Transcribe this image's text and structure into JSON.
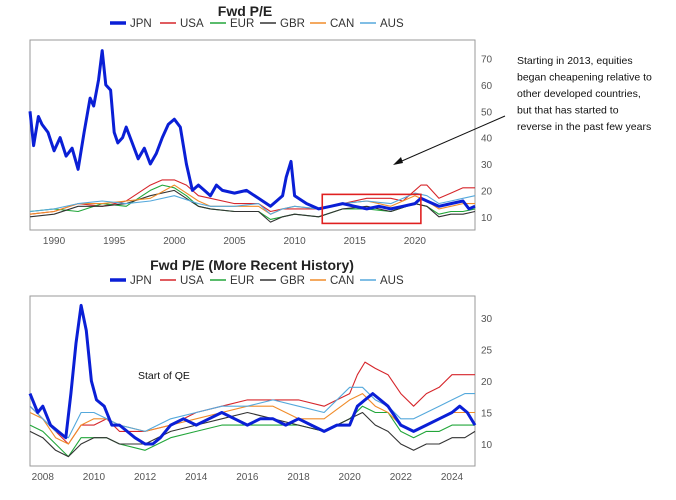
{
  "series_colors": {
    "JPN": "#0a1fd6",
    "USA": "#d6262b",
    "EUR": "#22a63a",
    "GBR": "#333333",
    "CAN": "#f08c2a",
    "AUS": "#55a9dc"
  },
  "chart_data": [
    {
      "type": "line",
      "title": "Fwd P/E",
      "legend": [
        "JPN",
        "USA",
        "EUR",
        "GBR",
        "CAN",
        "AUS"
      ],
      "legend_position": "top",
      "xlim": [
        1988,
        2025
      ],
      "ylim": [
        5,
        77
      ],
      "x_ticks": [
        "1990",
        "1995",
        "2000",
        "2005",
        "2010",
        "2015",
        "2020"
      ],
      "y_ticks": [
        "10",
        "20",
        "30",
        "40",
        "50",
        "60",
        "70"
      ],
      "y_axis_side": "right",
      "grid": false,
      "series": [
        {
          "name": "JPN",
          "x": [
            1988,
            1988.3,
            1988.7,
            1989,
            1989.5,
            1990,
            1990.5,
            1991,
            1991.5,
            1992,
            1992.5,
            1993,
            1993.3,
            1993.7,
            1994,
            1994.3,
            1994.7,
            1995,
            1995.3,
            1995.7,
            1996,
            1996.5,
            1997,
            1997.5,
            1998,
            1998.5,
            1999,
            1999.5,
            2000,
            2000.5,
            2001,
            2001.5,
            2002,
            2002.5,
            2003,
            2003.5,
            2004,
            2005,
            2006,
            2007,
            2008,
            2008.5,
            2009,
            2009.3,
            2009.7,
            2010,
            2011,
            2012,
            2013,
            2014,
            2015,
            2016,
            2017,
            2018,
            2019,
            2020,
            2020.5,
            2021,
            2022,
            2023,
            2024,
            2024.5,
            2025
          ],
          "values": [
            50,
            37,
            48,
            45,
            42,
            35,
            40,
            33,
            36,
            28,
            42,
            55,
            52,
            62,
            73,
            60,
            58,
            42,
            38,
            40,
            44,
            38,
            32,
            36,
            30,
            34,
            40,
            45,
            47,
            44,
            30,
            20,
            22,
            20,
            18,
            22,
            20,
            19,
            20,
            17,
            14,
            16,
            18,
            25,
            31,
            18,
            15,
            13,
            14,
            15,
            14,
            13,
            14,
            13,
            14,
            15,
            17,
            16,
            14,
            15,
            16,
            13,
            14
          ]
        },
        {
          "name": "USA",
          "x": [
            1988,
            1990,
            1992,
            1994,
            1996,
            1998,
            1999,
            2000,
            2001,
            2002,
            2003,
            2005,
            2007,
            2008,
            2009,
            2010,
            2012,
            2014,
            2016,
            2018,
            2019,
            2020,
            2020.5,
            2021,
            2022,
            2023,
            2024,
            2025
          ],
          "values": [
            11,
            12,
            15,
            14,
            16,
            22,
            24,
            24,
            22,
            18,
            17,
            15,
            15,
            12,
            13,
            13,
            13,
            15,
            17,
            17,
            16,
            20,
            22,
            22,
            17,
            19,
            21,
            21
          ]
        },
        {
          "name": "EUR",
          "x": [
            1988,
            1990,
            1992,
            1994,
            1996,
            1998,
            1999,
            2000,
            2001,
            2002,
            2003,
            2005,
            2007,
            2008,
            2009,
            2010,
            2012,
            2014,
            2016,
            2018,
            2020,
            2021,
            2022,
            2023,
            2024,
            2025
          ],
          "values": [
            12,
            13,
            12,
            15,
            14,
            20,
            22,
            21,
            18,
            14,
            13,
            12,
            12,
            9,
            10,
            11,
            10,
            13,
            13,
            12,
            15,
            14,
            11,
            12,
            12,
            13
          ]
        },
        {
          "name": "GBR",
          "x": [
            1988,
            1990,
            1992,
            1994,
            1996,
            1998,
            2000,
            2002,
            2003,
            2005,
            2007,
            2008,
            2009,
            2010,
            2012,
            2014,
            2016,
            2018,
            2020,
            2021,
            2022,
            2023,
            2024,
            2025
          ],
          "values": [
            10,
            11,
            14,
            14,
            15,
            18,
            20,
            14,
            13,
            12,
            12,
            8,
            10,
            11,
            10,
            13,
            14,
            12,
            15,
            14,
            10,
            11,
            11,
            12
          ]
        },
        {
          "name": "CAN",
          "x": [
            1988,
            1990,
            1992,
            1994,
            1996,
            1998,
            2000,
            2002,
            2003,
            2005,
            2007,
            2008,
            2009,
            2010,
            2012,
            2014,
            2016,
            2018,
            2020,
            2021,
            2022,
            2023,
            2024,
            2025
          ],
          "values": [
            11,
            12,
            15,
            15,
            16,
            17,
            22,
            16,
            14,
            14,
            14,
            11,
            13,
            14,
            13,
            15,
            16,
            14,
            18,
            16,
            13,
            14,
            15,
            15
          ]
        },
        {
          "name": "AUS",
          "x": [
            1988,
            1990,
            1992,
            1994,
            1996,
            1998,
            2000,
            2002,
            2003,
            2005,
            2007,
            2008,
            2009,
            2010,
            2012,
            2014,
            2016,
            2018,
            2020,
            2021,
            2022,
            2023,
            2024,
            2025
          ],
          "values": [
            12,
            13,
            15,
            16,
            15,
            16,
            18,
            15,
            14,
            14,
            15,
            11,
            13,
            14,
            13,
            15,
            16,
            15,
            19,
            18,
            15,
            16,
            17,
            18
          ]
        }
      ],
      "annotation": {
        "lines": [
          "Starting in 2013, equities",
          "began cheapening relative to",
          "other developed countries,",
          "but that has started to",
          "reverse in the past few years"
        ],
        "highlight_box": {
          "x_start": 2012.3,
          "x_end": 2020.5,
          "y_start": 7.5,
          "y_end": 18.5
        }
      }
    },
    {
      "type": "line",
      "title": "Fwd P/E (More Recent History)",
      "legend": [
        "JPN",
        "USA",
        "EUR",
        "GBR",
        "CAN",
        "AUS"
      ],
      "legend_position": "top",
      "xlim": [
        2007.5,
        2024.9
      ],
      "ylim": [
        6.5,
        33.5
      ],
      "x_ticks": [
        "2008",
        "2010",
        "2012",
        "2014",
        "2016",
        "2018",
        "2020",
        "2022",
        "2024"
      ],
      "y_ticks": [
        "10",
        "15",
        "20",
        "25",
        "30"
      ],
      "y_axis_side": "right",
      "grid": false,
      "series": [
        {
          "name": "JPN",
          "x": [
            2007.5,
            2007.8,
            2008,
            2008.3,
            2008.6,
            2008.9,
            2009.1,
            2009.3,
            2009.5,
            2009.7,
            2009.9,
            2010.1,
            2010.4,
            2010.7,
            2011,
            2011.3,
            2011.6,
            2012,
            2012.3,
            2012.6,
            2013,
            2013.5,
            2014,
            2014.5,
            2015,
            2015.5,
            2016,
            2016.5,
            2017,
            2017.5,
            2018,
            2018.5,
            2019,
            2019.5,
            2020,
            2020.3,
            2020.6,
            2020.9,
            2021.2,
            2021.5,
            2022,
            2022.5,
            2023,
            2023.5,
            2024,
            2024.3,
            2024.6,
            2024.9
          ],
          "values": [
            18,
            15,
            16,
            13,
            12,
            11,
            18,
            26,
            32,
            28,
            20,
            17,
            16,
            13,
            13,
            12,
            11,
            10,
            10,
            11,
            13,
            14,
            13,
            14,
            15,
            14,
            13,
            14,
            14,
            13,
            14,
            13,
            12,
            13,
            13,
            16,
            17,
            18,
            17,
            16,
            13,
            12,
            13,
            14,
            15,
            16,
            15,
            13
          ]
        },
        {
          "name": "USA",
          "x": [
            2007.5,
            2008,
            2008.5,
            2009,
            2009.5,
            2010,
            2010.5,
            2011,
            2012,
            2013,
            2014,
            2015,
            2016,
            2017,
            2018,
            2019,
            2019.5,
            2020,
            2020.3,
            2020.6,
            2021,
            2021.5,
            2022,
            2022.5,
            2023,
            2023.5,
            2024,
            2024.5,
            2024.9
          ],
          "values": [
            16,
            14,
            12,
            10,
            13,
            13,
            14,
            12,
            12,
            13,
            15,
            16,
            17,
            17,
            17,
            16,
            17,
            18,
            21,
            23,
            22,
            21,
            18,
            16,
            18,
            19,
            21,
            21,
            21
          ]
        },
        {
          "name": "EUR",
          "x": [
            2007.5,
            2008,
            2008.5,
            2009,
            2009.5,
            2010,
            2010.5,
            2011,
            2012,
            2013,
            2014,
            2015,
            2016,
            2017,
            2018,
            2019,
            2020,
            2020.5,
            2021,
            2021.5,
            2022,
            2022.5,
            2023,
            2023.5,
            2024,
            2024.5,
            2024.9
          ],
          "values": [
            13,
            12,
            10,
            8,
            11,
            11,
            11,
            10,
            9,
            11,
            12,
            13,
            13,
            13,
            13,
            12,
            14,
            16,
            15,
            15,
            12,
            11,
            12,
            12,
            13,
            13,
            13
          ]
        },
        {
          "name": "GBR",
          "x": [
            2007.5,
            2008,
            2008.5,
            2009,
            2009.5,
            2010,
            2010.5,
            2011,
            2012,
            2013,
            2014,
            2015,
            2016,
            2017,
            2018,
            2019,
            2020,
            2020.5,
            2021,
            2021.5,
            2022,
            2022.5,
            2023,
            2023.5,
            2024,
            2024.5,
            2024.9
          ],
          "values": [
            12,
            11,
            9,
            8,
            10,
            11,
            11,
            10,
            10,
            12,
            13,
            14,
            15,
            14,
            13,
            12,
            14,
            15,
            13,
            12,
            10,
            9,
            10,
            10,
            11,
            11,
            12
          ]
        },
        {
          "name": "CAN",
          "x": [
            2007.5,
            2008,
            2008.5,
            2009,
            2009.5,
            2010,
            2010.5,
            2011,
            2012,
            2013,
            2014,
            2015,
            2016,
            2017,
            2018,
            2019,
            2020,
            2020.5,
            2021,
            2021.5,
            2022,
            2022.5,
            2023,
            2023.5,
            2024,
            2024.5,
            2024.9
          ],
          "values": [
            15,
            14,
            11,
            10,
            13,
            14,
            14,
            13,
            12,
            13,
            14,
            15,
            16,
            16,
            14,
            14,
            17,
            18,
            16,
            15,
            13,
            12,
            13,
            14,
            15,
            15,
            15
          ]
        },
        {
          "name": "AUS",
          "x": [
            2007.5,
            2008,
            2008.5,
            2009,
            2009.5,
            2010,
            2010.5,
            2011,
            2012,
            2013,
            2014,
            2015,
            2016,
            2017,
            2018,
            2019,
            2020,
            2020.5,
            2021,
            2021.5,
            2022,
            2022.5,
            2023,
            2023.5,
            2024,
            2024.5,
            2024.9
          ],
          "values": [
            16,
            14,
            12,
            11,
            15,
            15,
            14,
            13,
            12,
            14,
            15,
            16,
            16,
            17,
            16,
            15,
            19,
            19,
            17,
            16,
            14,
            14,
            15,
            16,
            17,
            18,
            18
          ]
        }
      ],
      "annotation": {
        "lines": [
          "Start of QE"
        ]
      }
    }
  ]
}
